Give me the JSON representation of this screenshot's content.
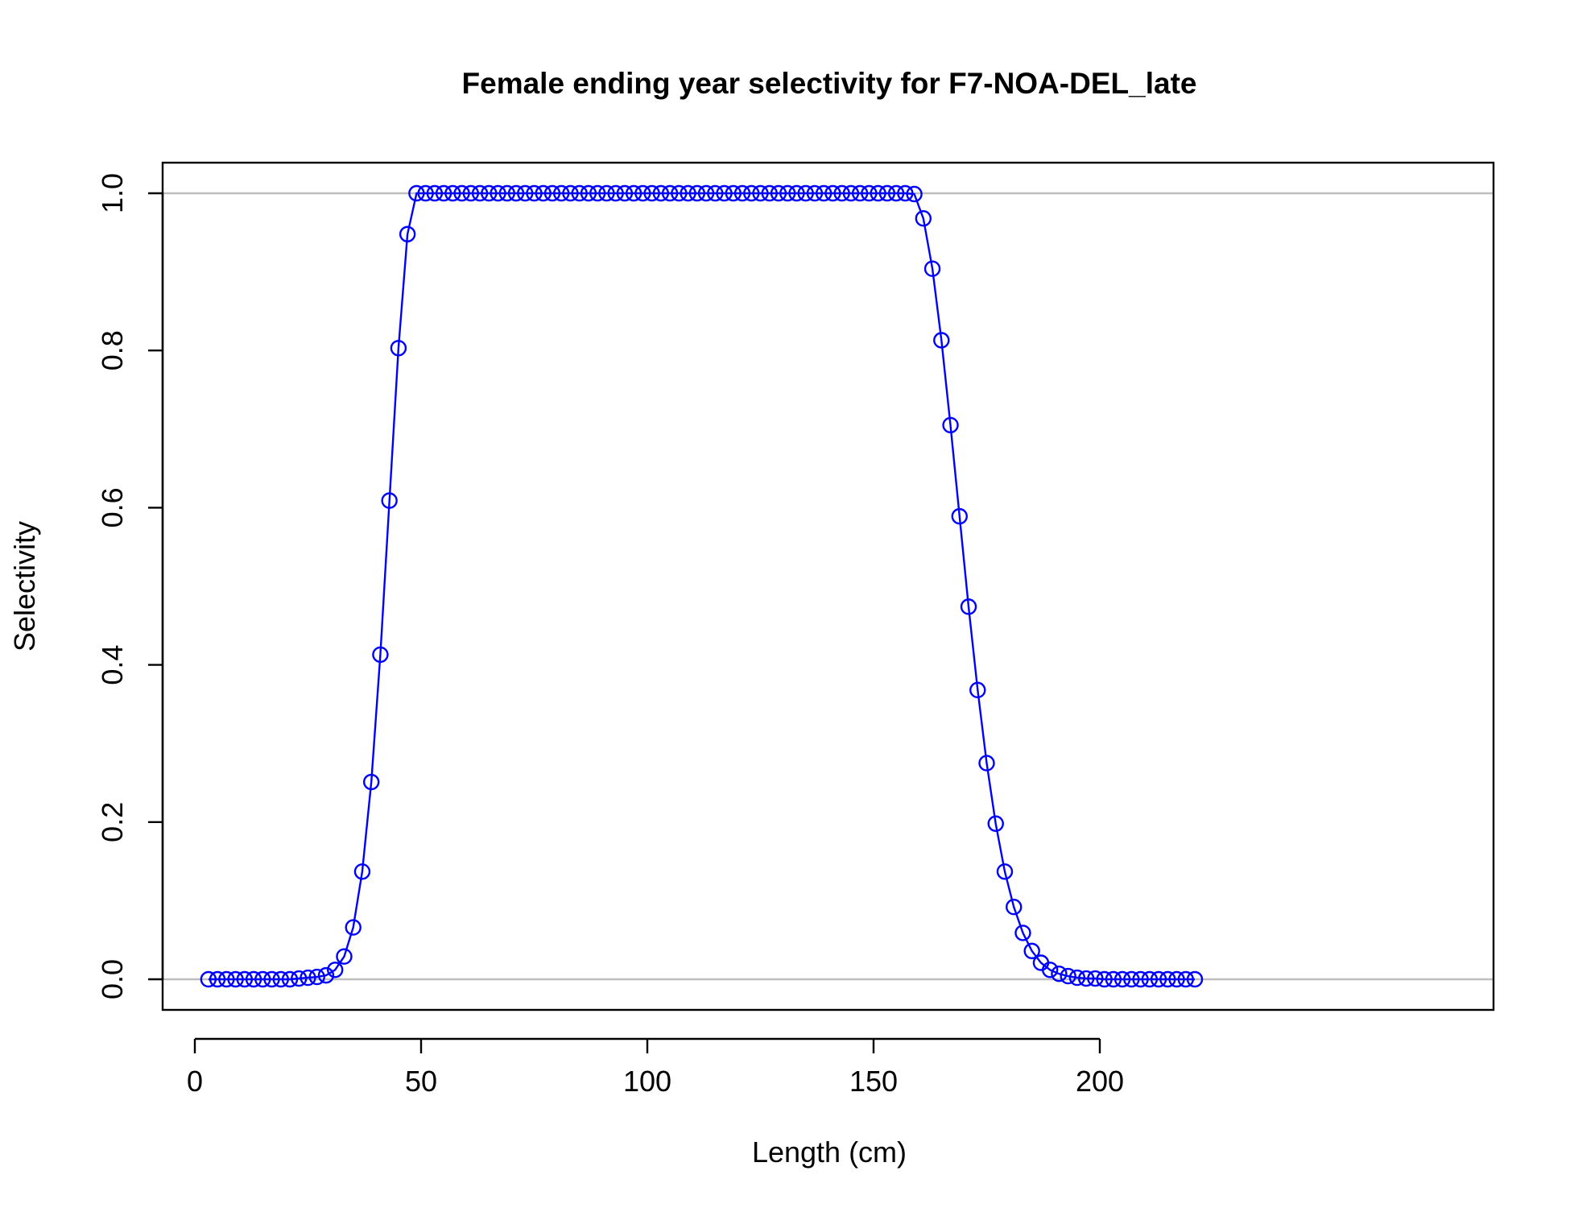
{
  "chart_data": {
    "type": "line",
    "title": "Female ending year selectivity for F7-NOA-DEL_late",
    "xlabel": "Length (cm)",
    "ylabel": "Selectivity",
    "xlim": [
      0,
      230
    ],
    "ylim": [
      0,
      1.0
    ],
    "x_ticks": [
      0,
      50,
      100,
      150,
      200
    ],
    "y_ticks": [
      0.0,
      0.2,
      0.4,
      0.6,
      0.8,
      1.0
    ],
    "x_tick_labels": [
      "0",
      "50",
      "100",
      "150",
      "200"
    ],
    "y_tick_labels": [
      "0.0",
      "0.2",
      "0.4",
      "0.6",
      "0.8",
      "1.0"
    ],
    "reference_lines_y": [
      0,
      1
    ],
    "grid": false,
    "legend": "none",
    "colors": {
      "series": "#0000ff",
      "reference": "#bebebe",
      "axes": "#000000"
    },
    "marker": "open-circle",
    "series": [
      {
        "x": [
          3,
          5,
          7,
          9,
          11,
          13,
          15,
          17,
          19,
          21,
          23,
          25,
          27,
          29,
          31,
          33,
          35,
          37,
          39,
          41,
          43,
          45,
          47,
          49,
          51,
          53,
          55,
          57,
          59,
          61,
          63,
          65,
          67,
          69,
          71,
          73,
          75,
          77,
          79,
          81,
          83,
          85,
          87,
          89,
          91,
          93,
          95,
          97,
          99,
          101,
          103,
          105,
          107,
          109,
          111,
          113,
          115,
          117,
          119,
          121,
          123,
          125,
          127,
          129,
          131,
          133,
          135,
          137,
          139,
          141,
          143,
          145,
          147,
          149,
          151,
          153,
          155,
          157,
          159,
          161,
          163,
          165,
          167,
          169,
          171,
          173,
          175,
          177,
          179,
          181,
          183,
          185,
          187,
          189,
          191,
          193,
          195,
          197,
          199,
          201,
          203,
          205,
          207,
          209,
          211,
          213,
          215,
          217,
          219,
          221
        ],
        "values": [
          0,
          0,
          0,
          0,
          0,
          0,
          0,
          0,
          0,
          0,
          0.001,
          0.002,
          0.003,
          0.005,
          0.012,
          0.029,
          0.066,
          0.137,
          0.251,
          0.413,
          0.609,
          0.803,
          0.948,
          1.0,
          1.0,
          1.0,
          1.0,
          1.0,
          1.0,
          1.0,
          1.0,
          1.0,
          1.0,
          1.0,
          1.0,
          1.0,
          1.0,
          1.0,
          1.0,
          1.0,
          1.0,
          1.0,
          1.0,
          1.0,
          1.0,
          1.0,
          1.0,
          1.0,
          1.0,
          1.0,
          1.0,
          1.0,
          1.0,
          1.0,
          1.0,
          1.0,
          1.0,
          1.0,
          1.0,
          1.0,
          1.0,
          1.0,
          1.0,
          1.0,
          1.0,
          1.0,
          1.0,
          1.0,
          1.0,
          1.0,
          1.0,
          1.0,
          1.0,
          1.0,
          1.0,
          1.0,
          1.0,
          1.0,
          0.999,
          0.968,
          0.904,
          0.813,
          0.705,
          0.589,
          0.474,
          0.368,
          0.275,
          0.198,
          0.137,
          0.092,
          0.059,
          0.036,
          0.021,
          0.012,
          0.007,
          0.004,
          0.002,
          0.001,
          0.001,
          0,
          0,
          0,
          0,
          0,
          0,
          0,
          0,
          0,
          0,
          0
        ]
      }
    ]
  }
}
